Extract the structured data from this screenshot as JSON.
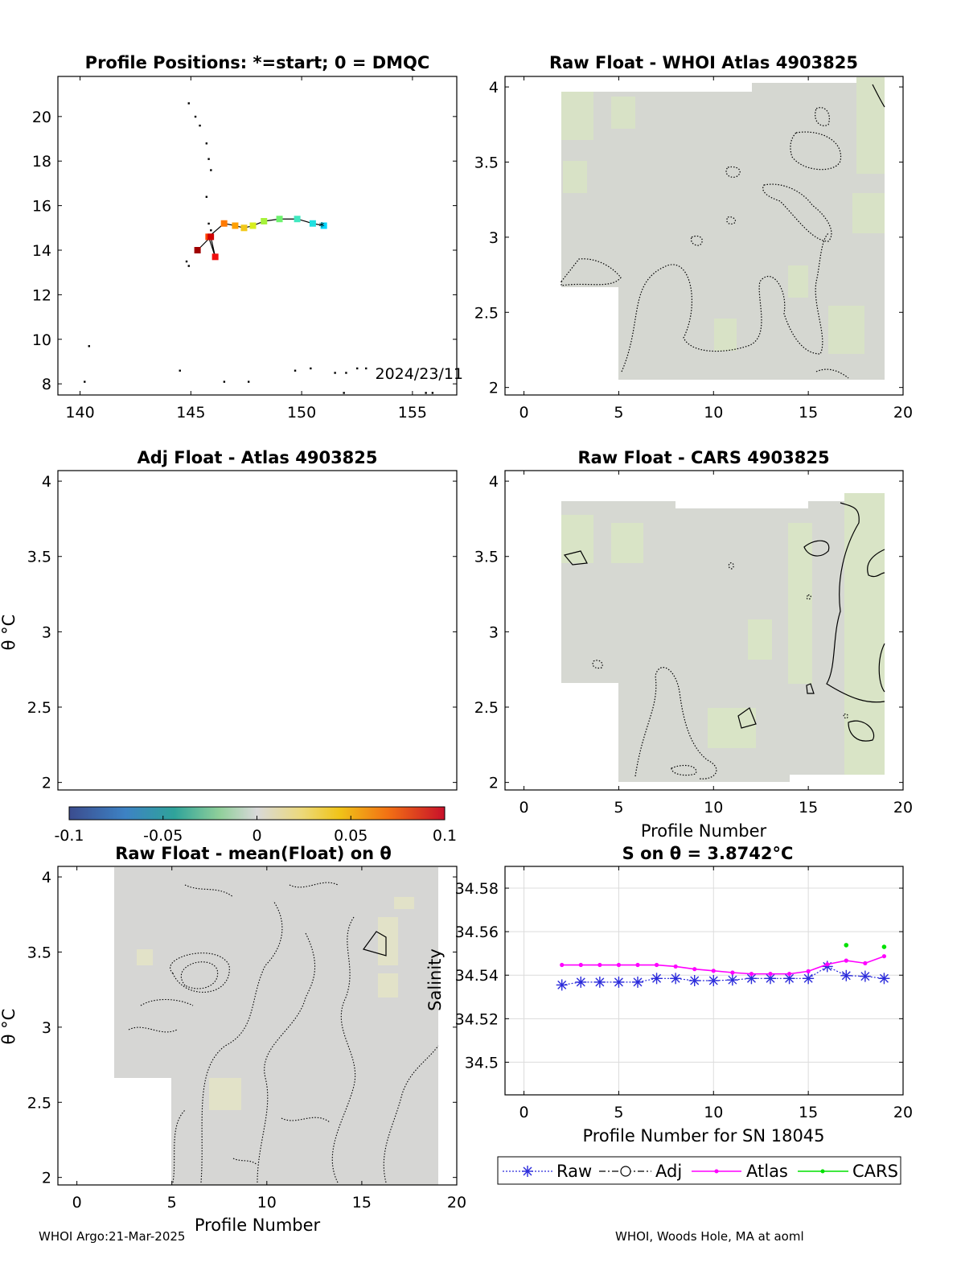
{
  "footer": {
    "left": "WHOI Argo:21-Mar-2025",
    "right": "WHOI, Woods Hole, MA at aoml"
  },
  "colorbar": {
    "ticks": [
      "-0.1",
      "-0.05",
      "0",
      "0.05",
      "0.1"
    ],
    "range": [
      -0.1,
      0.1
    ]
  },
  "chart_data": [
    {
      "id": "map",
      "type": "scatter",
      "title": "Profile Positions: *=start; 0 = DMQC",
      "xlim": [
        139,
        157
      ],
      "ylim": [
        7.5,
        21.8
      ],
      "xticks": [
        "140",
        "145",
        "150",
        "155"
      ],
      "yticks": [
        "8",
        "10",
        "12",
        "14",
        "16",
        "18",
        "20"
      ],
      "annotation": "2024/23/11",
      "track": [
        {
          "x": 151.0,
          "y": 15.1
        },
        {
          "x": 150.5,
          "y": 15.2
        },
        {
          "x": 149.8,
          "y": 15.4
        },
        {
          "x": 149.0,
          "y": 15.4
        },
        {
          "x": 148.3,
          "y": 15.3
        },
        {
          "x": 147.8,
          "y": 15.1
        },
        {
          "x": 147.4,
          "y": 15.0
        },
        {
          "x": 147.0,
          "y": 15.1
        },
        {
          "x": 146.5,
          "y": 15.2
        },
        {
          "x": 145.8,
          "y": 14.6
        },
        {
          "x": 146.1,
          "y": 13.7
        },
        {
          "x": 145.9,
          "y": 14.6
        },
        {
          "x": 145.3,
          "y": 14.0
        }
      ],
      "coast_points": [
        {
          "x": 144.9,
          "y": 20.6
        },
        {
          "x": 145.2,
          "y": 20.0
        },
        {
          "x": 145.4,
          "y": 19.6
        },
        {
          "x": 145.7,
          "y": 18.8
        },
        {
          "x": 145.8,
          "y": 18.1
        },
        {
          "x": 145.9,
          "y": 17.6
        },
        {
          "x": 145.7,
          "y": 16.4
        },
        {
          "x": 145.8,
          "y": 15.2
        },
        {
          "x": 145.9,
          "y": 14.9
        },
        {
          "x": 144.8,
          "y": 13.5
        },
        {
          "x": 144.9,
          "y": 13.3
        },
        {
          "x": 140.4,
          "y": 9.7
        },
        {
          "x": 140.2,
          "y": 8.1
        },
        {
          "x": 144.5,
          "y": 8.6
        },
        {
          "x": 146.5,
          "y": 8.1
        },
        {
          "x": 147.6,
          "y": 8.1
        },
        {
          "x": 149.7,
          "y": 8.6
        },
        {
          "x": 150.4,
          "y": 8.7
        },
        {
          "x": 151.5,
          "y": 8.5
        },
        {
          "x": 152.0,
          "y": 8.5
        },
        {
          "x": 152.5,
          "y": 8.7
        },
        {
          "x": 152.9,
          "y": 8.7
        },
        {
          "x": 151.9,
          "y": 7.6
        },
        {
          "x": 155.6,
          "y": 7.6
        },
        {
          "x": 155.9,
          "y": 7.6
        }
      ]
    },
    {
      "id": "whoi",
      "type": "heatmap",
      "title": "Raw Float - WHOI Atlas  4903825",
      "xlim": [
        -1,
        20
      ],
      "ylim": [
        1.95,
        4.07
      ],
      "xticks": [
        "0",
        "5",
        "10",
        "15",
        "20"
      ],
      "yticks": [
        "2",
        "2.5",
        "3",
        "3.5",
        "4"
      ],
      "xlabel": "",
      "ylabel": ""
    },
    {
      "id": "adj",
      "type": "heatmap",
      "title": "Adj Float - Atlas  4903825",
      "xlim": [
        -1,
        20
      ],
      "ylim": [
        1.95,
        4.07
      ],
      "xticks": [],
      "yticks": [
        "2",
        "2.5",
        "3",
        "3.5",
        "4"
      ],
      "xlabel": "",
      "ylabel": "θ °C"
    },
    {
      "id": "cars",
      "type": "heatmap",
      "title": "Raw Float - CARS  4903825",
      "xlim": [
        -1,
        20
      ],
      "ylim": [
        1.95,
        4.07
      ],
      "xticks": [
        "0",
        "5",
        "10",
        "15",
        "20"
      ],
      "yticks": [
        "2",
        "2.5",
        "3",
        "3.5",
        "4"
      ],
      "xlabel": "Profile Number",
      "ylabel": ""
    },
    {
      "id": "mean",
      "type": "heatmap",
      "title": "Raw Float - mean(Float) on θ",
      "xlim": [
        -1,
        20
      ],
      "ylim": [
        1.95,
        4.07
      ],
      "xticks": [
        "0",
        "5",
        "10",
        "15",
        "20"
      ],
      "yticks": [
        "2",
        "2.5",
        "3",
        "3.5",
        "4"
      ],
      "xlabel": "Profile Number",
      "ylabel": "θ °C"
    },
    {
      "id": "sal",
      "type": "line",
      "title": "S on θ = 3.8742°C",
      "xlim": [
        -1,
        20
      ],
      "ylim": [
        34.485,
        34.59
      ],
      "xticks": [
        "0",
        "5",
        "10",
        "15",
        "20"
      ],
      "yticks": [
        "34.5",
        "34.52",
        "34.54",
        "34.56",
        "34.58"
      ],
      "xlabel": "Profile Number for SN 18045",
      "ylabel": "Salinity",
      "grid": true,
      "legend": [
        "Raw",
        "Adj",
        "Atlas",
        "CARS"
      ],
      "legend_position": "bottom",
      "series": [
        {
          "name": "Raw",
          "color": "#2b2bdb",
          "x": [
            2,
            3,
            4,
            5,
            6,
            7,
            8,
            9,
            10,
            11,
            12,
            13,
            14,
            15,
            16,
            17,
            18,
            19
          ],
          "y": [
            34.5355,
            34.5368,
            34.5368,
            34.5368,
            34.5368,
            34.5385,
            34.5385,
            34.5375,
            34.5375,
            34.5378,
            34.5385,
            34.5385,
            34.5385,
            34.5385,
            34.544,
            34.5398,
            34.5395,
            34.5385
          ]
        },
        {
          "name": "Atlas",
          "color": "#ff00ff",
          "x": [
            2,
            3,
            4,
            5,
            6,
            7,
            8,
            9,
            10,
            11,
            12,
            13,
            14,
            15,
            16,
            17,
            18,
            19
          ],
          "y": [
            34.5447,
            34.5447,
            34.5447,
            34.5447,
            34.5447,
            34.5447,
            34.544,
            34.5428,
            34.542,
            34.5412,
            34.5406,
            34.5406,
            34.5406,
            34.5418,
            34.545,
            34.5467,
            34.5455,
            34.5487
          ]
        },
        {
          "name": "CARS",
          "color": "#00e000",
          "x": [
            17,
            19
          ],
          "y": [
            34.5538,
            34.553
          ]
        }
      ]
    }
  ]
}
